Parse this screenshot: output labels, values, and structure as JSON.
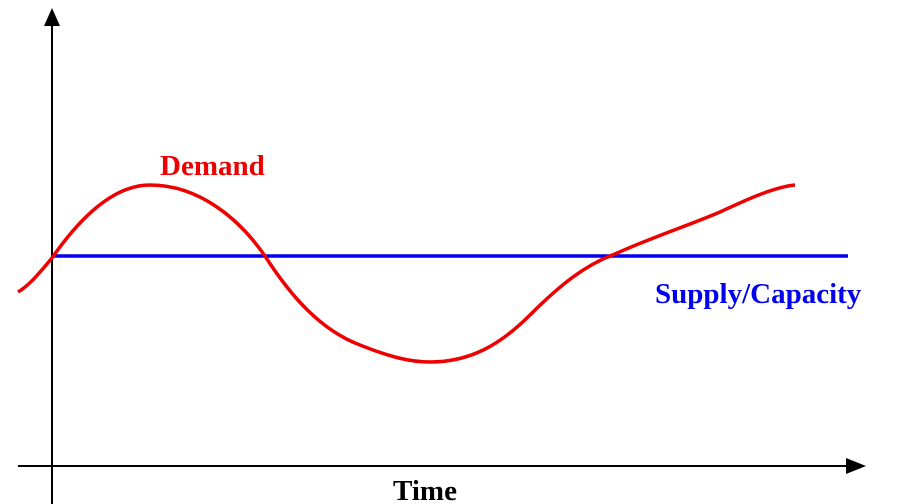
{
  "labels": {
    "demand": "Demand",
    "supply": "Supply/Capacity",
    "x_axis": "Time"
  }
}
